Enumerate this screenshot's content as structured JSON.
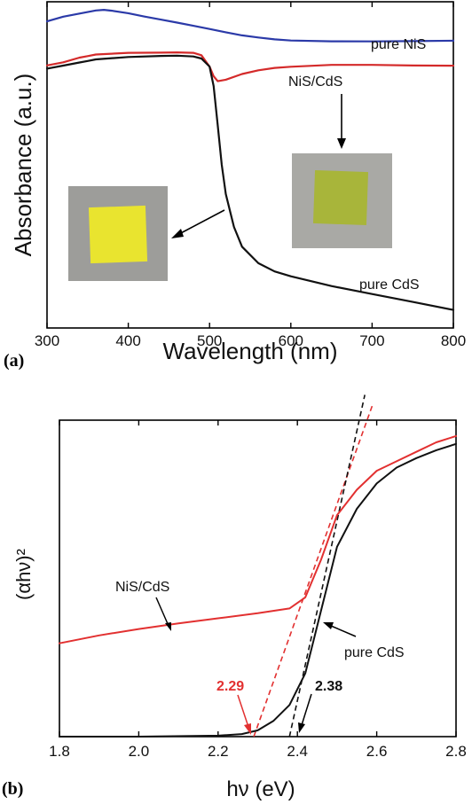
{
  "chart_data": [
    {
      "panel_label": "(a)",
      "type": "line",
      "xlabel": "Wavelength (nm)",
      "ylabel": "Absorbance (a.u.)",
      "xlim": [
        300,
        800
      ],
      "ylim": [
        0,
        1
      ],
      "xticks": [
        300,
        400,
        500,
        600,
        700,
        800
      ],
      "xtick_labels": [
        "300",
        "400",
        "500",
        "600",
        "700",
        "800"
      ],
      "grid": false,
      "series": [
        {
          "name": "pure NiS",
          "color": "#2b3aa8",
          "x": [
            300,
            320,
            340,
            360,
            370,
            380,
            400,
            420,
            440,
            460,
            480,
            500,
            520,
            540,
            560,
            580,
            600,
            650,
            700,
            750,
            800
          ],
          "y": [
            0.94,
            0.955,
            0.965,
            0.975,
            0.977,
            0.974,
            0.966,
            0.955,
            0.945,
            0.935,
            0.925,
            0.915,
            0.905,
            0.896,
            0.89,
            0.885,
            0.882,
            0.88,
            0.88,
            0.881,
            0.882
          ]
        },
        {
          "name": "NiS/CdS",
          "color": "#d42a2a",
          "x": [
            300,
            320,
            340,
            350,
            360,
            400,
            440,
            460,
            480,
            490,
            500,
            505,
            510,
            520,
            540,
            560,
            580,
            600,
            650,
            700,
            750,
            800
          ],
          "y": [
            0.805,
            0.815,
            0.83,
            0.835,
            0.84,
            0.845,
            0.845,
            0.845,
            0.843,
            0.835,
            0.8,
            0.77,
            0.755,
            0.76,
            0.778,
            0.79,
            0.798,
            0.802,
            0.808,
            0.808,
            0.806,
            0.805
          ]
        },
        {
          "name": "pure CdS",
          "color": "#111111",
          "x": [
            300,
            320,
            340,
            350,
            360,
            400,
            440,
            460,
            480,
            490,
            500,
            505,
            510,
            515,
            520,
            530,
            540,
            560,
            580,
            600,
            650,
            700,
            750,
            800
          ],
          "y": [
            0.795,
            0.805,
            0.815,
            0.82,
            0.825,
            0.832,
            0.835,
            0.835,
            0.832,
            0.825,
            0.8,
            0.74,
            0.62,
            0.5,
            0.41,
            0.31,
            0.25,
            0.2,
            0.175,
            0.16,
            0.13,
            0.105,
            0.08,
            0.055
          ]
        }
      ],
      "annotations": [
        "pure NiS",
        "NiS/CdS",
        "pure CdS"
      ]
    },
    {
      "panel_label": "(b)",
      "type": "line",
      "xlabel": "hν (eV)",
      "ylabel": "(αhν)²",
      "xlim": [
        1.8,
        2.8
      ],
      "ylim": [
        0,
        1
      ],
      "xticks": [
        1.8,
        2.0,
        2.2,
        2.4,
        2.6,
        2.8
      ],
      "xtick_labels": [
        "1.8",
        "2.0",
        "2.2",
        "2.4",
        "2.6",
        "2.8"
      ],
      "grid": false,
      "series": [
        {
          "name": "NiS/CdS",
          "color": "#e23030",
          "x": [
            1.8,
            1.9,
            2.0,
            2.1,
            2.2,
            2.3,
            2.38,
            2.42,
            2.46,
            2.5,
            2.55,
            2.6,
            2.65,
            2.7,
            2.75,
            2.8
          ],
          "y": [
            0.295,
            0.32,
            0.34,
            0.358,
            0.374,
            0.39,
            0.405,
            0.44,
            0.56,
            0.7,
            0.78,
            0.84,
            0.87,
            0.9,
            0.93,
            0.95
          ]
        },
        {
          "name": "pure CdS",
          "color": "#111111",
          "x": [
            1.8,
            2.0,
            2.2,
            2.26,
            2.3,
            2.34,
            2.38,
            2.42,
            2.44,
            2.46,
            2.5,
            2.55,
            2.6,
            2.65,
            2.7,
            2.75,
            2.8
          ],
          "y": [
            0.0,
            0.0,
            0.003,
            0.008,
            0.02,
            0.05,
            0.1,
            0.2,
            0.3,
            0.4,
            0.6,
            0.72,
            0.8,
            0.85,
            0.88,
            0.905,
            0.925
          ]
        }
      ],
      "fit_lines": [
        {
          "color": "#e23030",
          "x": [
            2.29,
            2.59
          ],
          "y": [
            0.0,
            1.05
          ]
        },
        {
          "color": "#111111",
          "x": [
            2.38,
            2.57
          ],
          "y": [
            0.0,
            1.08
          ]
        }
      ],
      "annotations": {
        "nis_cds": "NiS/CdS",
        "pure_cds": "pure CdS",
        "red_intercept": "2.29",
        "black_intercept": "2.38"
      }
    }
  ],
  "colors": {
    "nis": "#2b3aa8",
    "nis_cds_a": "#d42a2a",
    "nis_cds_b": "#e23030",
    "cds": "#111111",
    "red_label": "#e23030"
  }
}
